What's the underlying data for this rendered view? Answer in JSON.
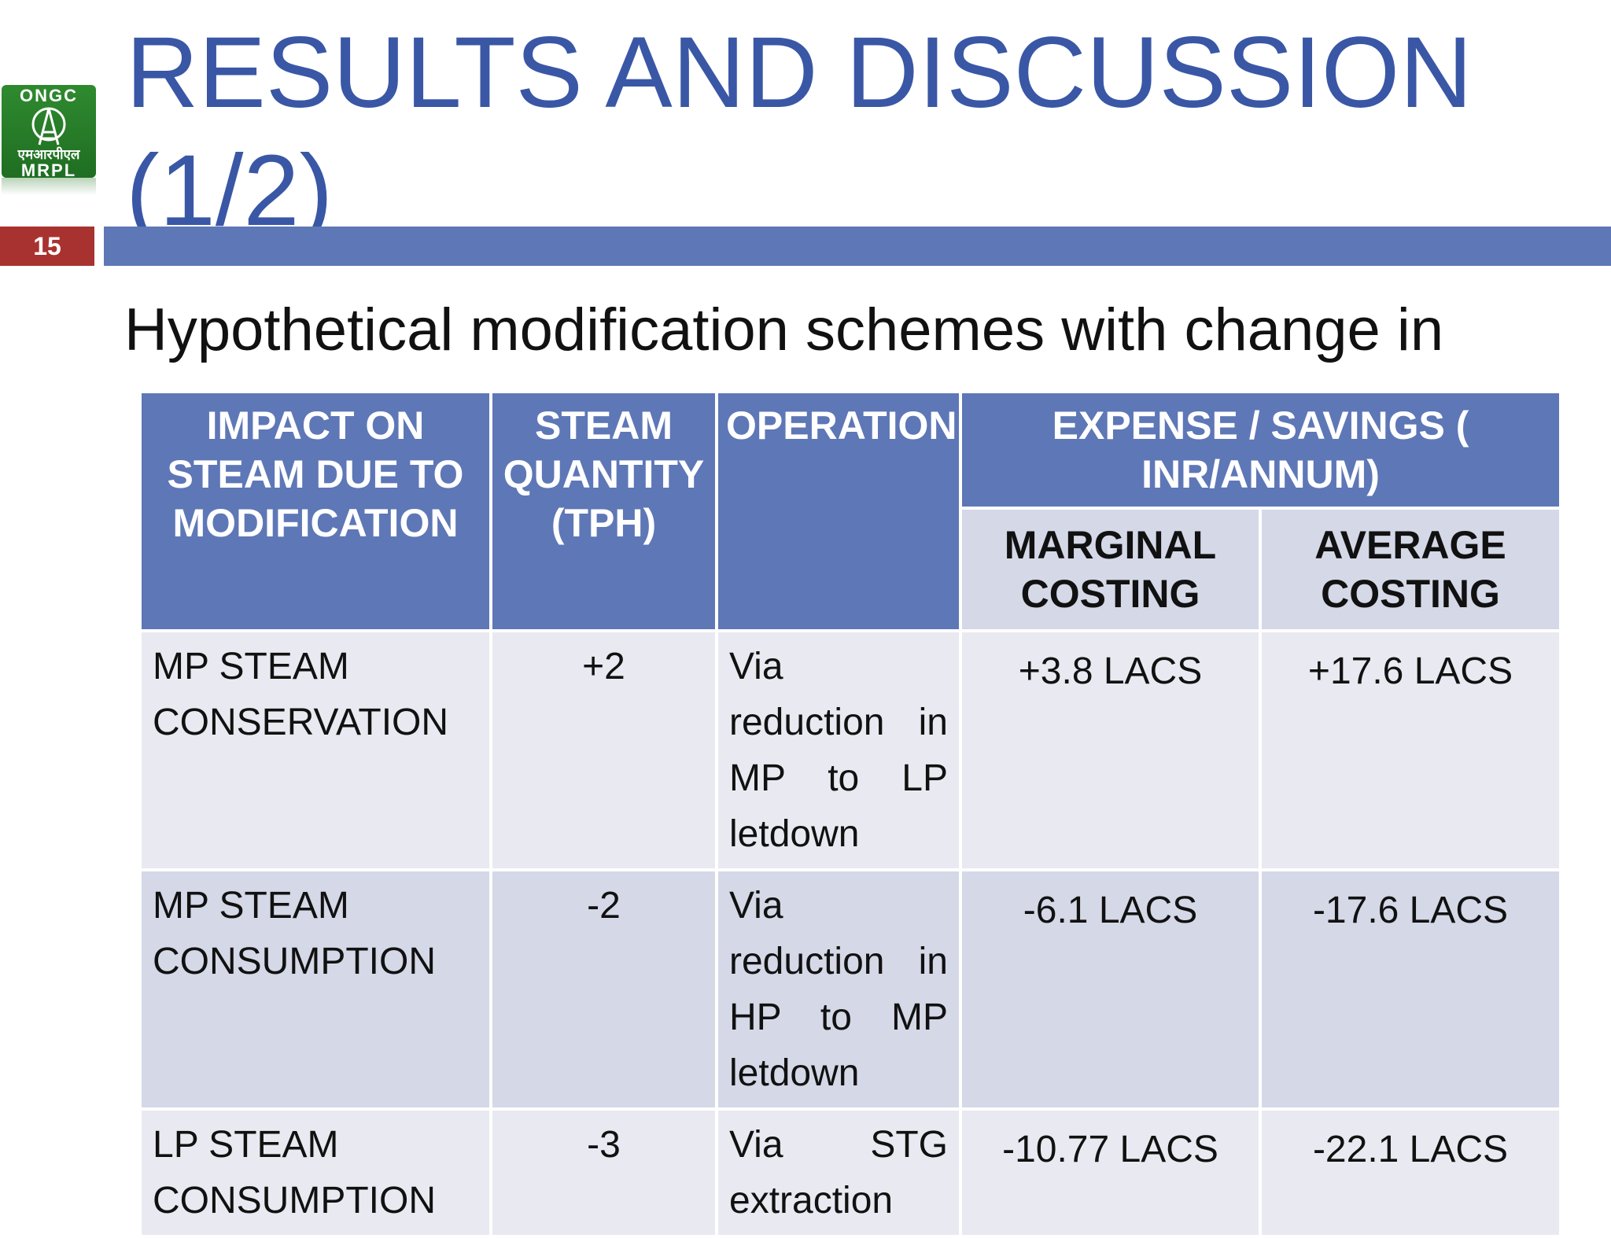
{
  "logo": {
    "line1": "ONGC",
    "line2": "एमआरपीएल",
    "line3": "MRPL",
    "color": "#2f8a2f"
  },
  "slide": {
    "title": "RESULTS AND DISCUSSION (1/2)",
    "number": "15",
    "subtitle": "Hypothetical modification schemes with change in"
  },
  "colors": {
    "title": "#3a57a6",
    "bar": "#5e77b6",
    "number_badge": "#a8322f",
    "row_light": "#e9eaf1",
    "row_dark": "#d4d8e7"
  },
  "table": {
    "headers": {
      "impact": "IMPACT ON STEAM DUE TO MODIFICATION",
      "quantity": "STEAM QUANTITY (TPH)",
      "operation": "OPERATION",
      "expense": "EXPENSE / SAVINGS ( INR/ANNUM)",
      "marginal": "MARGINAL COSTING",
      "average": "AVERAGE COSTING"
    },
    "rows": [
      {
        "impact": "MP STEAM CONSERVATION",
        "quantity": "+2",
        "operation": "Via reduction in MP to LP letdown",
        "marginal": "+3.8 LACS",
        "average": "+17.6 LACS"
      },
      {
        "impact": "MP STEAM CONSUMPTION",
        "quantity": "-2",
        "operation": "Via reduction in HP to MP letdown",
        "marginal": "-6.1 LACS",
        "average": "-17.6 LACS"
      },
      {
        "impact": "LP STEAM CONSUMPTION",
        "quantity": "-3",
        "operation": "Via STG extraction",
        "marginal": "-10.77 LACS",
        "average": "-22.1 LACS"
      }
    ]
  }
}
